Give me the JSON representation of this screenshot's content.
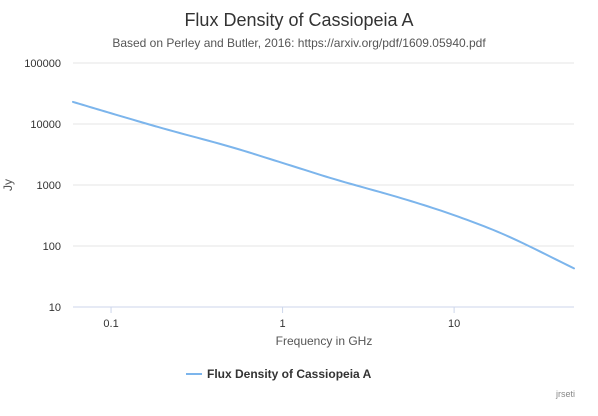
{
  "chart_data": {
    "type": "line",
    "title": "Flux Density of Cassiopeia A",
    "subtitle": "Based on Perley and Butler, 2016: https://arxiv.org/pdf/1609.05940.pdf",
    "xlabel": "Frequency in GHz",
    "ylabel": "Jy",
    "x_scale": "log",
    "y_scale": "log",
    "xlim": [
      0.06,
      50
    ],
    "ylim": [
      10,
      100000
    ],
    "x_ticks": [
      "0.1",
      "1",
      "10"
    ],
    "y_ticks": [
      "100000",
      "10000",
      "1000",
      "100",
      "10"
    ],
    "grid": "horizontal",
    "legend_position": "bottom-center",
    "series": [
      {
        "name": "Flux Density of Cassiopeia A",
        "color": "#7cb5ec",
        "x": [
          0.06,
          0.1,
          0.2,
          0.5,
          1,
          2,
          5,
          10,
          20,
          50
        ],
        "y": [
          23000,
          15000,
          8500,
          4200,
          2300,
          1250,
          600,
          320,
          150,
          43
        ]
      }
    ]
  },
  "credit": "jrseti"
}
